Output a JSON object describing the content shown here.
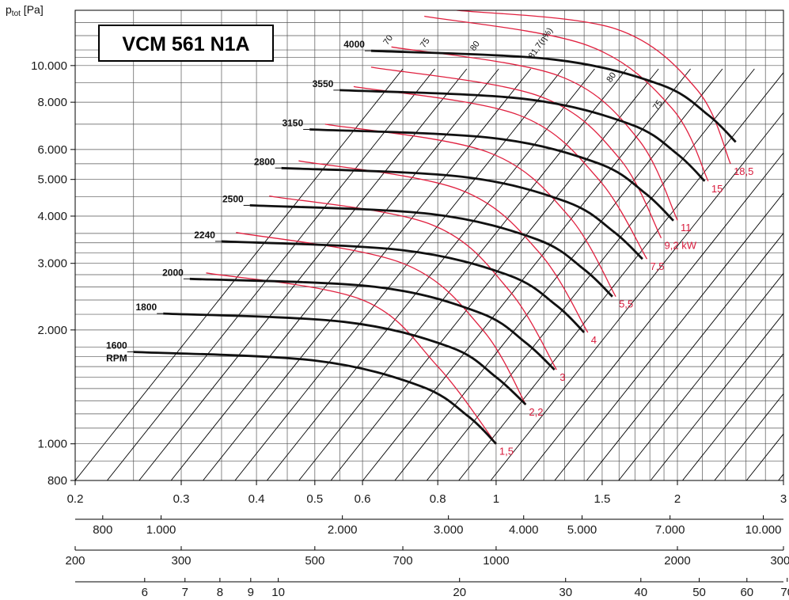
{
  "chart_data": {
    "type": "line",
    "title": "VCM 561 N1A",
    "ylabel": "p",
    "ylabel_sub": "tot",
    "ylabel_unit": " [Pa]",
    "x_scale": "log",
    "y_scale": "log",
    "xlim": [
      0.2,
      3
    ],
    "ylim": [
      800,
      14000
    ],
    "x_ticks": [
      {
        "v": 0.2,
        "label": "0.2"
      },
      {
        "v": 0.3,
        "label": "0.3"
      },
      {
        "v": 0.4,
        "label": "0.4"
      },
      {
        "v": 0.5,
        "label": "0.5"
      },
      {
        "v": 0.6,
        "label": "0.6"
      },
      {
        "v": 0.8,
        "label": "0.8"
      },
      {
        "v": 1,
        "label": "1"
      },
      {
        "v": 1.5,
        "label": "1.5"
      },
      {
        "v": 2,
        "label": "2"
      },
      {
        "v": 3,
        "label": "3"
      }
    ],
    "y_ticks": [
      {
        "v": 800,
        "label": "800"
      },
      {
        "v": 1000,
        "label": "1.000"
      },
      {
        "v": 2000,
        "label": "2.000"
      },
      {
        "v": 3000,
        "label": "3.000"
      },
      {
        "v": 4000,
        "label": "4.000"
      },
      {
        "v": 5000,
        "label": "5.000"
      },
      {
        "v": 6000,
        "label": "6.000"
      },
      {
        "v": 8000,
        "label": "8.000"
      },
      {
        "v": 10000,
        "label": "10.000"
      }
    ],
    "secondary_axes": [
      {
        "ticks": [
          {
            "v": 800,
            "label": "800"
          },
          {
            "v": 1000,
            "label": "1.000"
          },
          {
            "v": 2000,
            "label": "2.000"
          },
          {
            "v": 3000,
            "label": "3.000"
          },
          {
            "v": 4000,
            "label": "4.000"
          },
          {
            "v": 5000,
            "label": "5.000"
          },
          {
            "v": 7000,
            "label": "7.000"
          },
          {
            "v": 10000,
            "label": "10.000"
          }
        ]
      },
      {
        "ticks": [
          {
            "v": 20,
            "label": "20"
          },
          {
            "v": 30,
            "label": "30"
          },
          {
            "v": 40,
            "label": "40"
          },
          {
            "v": 50,
            "label": "50"
          },
          {
            "v": 80,
            "label": "80"
          },
          {
            "v": 100,
            "label": "100"
          },
          {
            "v": 200,
            "label": "200"
          },
          {
            "v": 300,
            "label": "300"
          },
          {
            "v": 500,
            "label": "500"
          },
          {
            "v": 700,
            "label": "700"
          },
          {
            "v": 1000,
            "label": "1000"
          },
          {
            "v": 2000,
            "label": "2000"
          },
          {
            "v": 3000,
            "label": "3000"
          }
        ]
      },
      {
        "ticks": [
          {
            "v": 6,
            "label": "6"
          },
          {
            "v": 7,
            "label": "7"
          },
          {
            "v": 8,
            "label": "8"
          },
          {
            "v": 9,
            "label": "9"
          },
          {
            "v": 10,
            "label": "10"
          },
          {
            "v": 20,
            "label": "20"
          },
          {
            "v": 30,
            "label": "30"
          },
          {
            "v": 40,
            "label": "40"
          },
          {
            "v": 50,
            "label": "50"
          },
          {
            "v": 60,
            "label": "60"
          },
          {
            "v": 70,
            "label": "70"
          }
        ]
      }
    ],
    "rpm_curves": [
      {
        "label": "1600",
        "label2": "RPM",
        "points": [
          [
            0.25,
            1750
          ],
          [
            0.5,
            1660
          ],
          [
            0.75,
            1420
          ],
          [
            0.9,
            1180
          ],
          [
            1.0,
            1000
          ]
        ]
      },
      {
        "label": "1800",
        "points": [
          [
            0.28,
            2210
          ],
          [
            0.56,
            2100
          ],
          [
            0.84,
            1800
          ],
          [
            1.0,
            1500
          ],
          [
            1.12,
            1270
          ]
        ]
      },
      {
        "label": "2000",
        "points": [
          [
            0.31,
            2730
          ],
          [
            0.63,
            2600
          ],
          [
            0.94,
            2220
          ],
          [
            1.12,
            1850
          ],
          [
            1.25,
            1570
          ]
        ]
      },
      {
        "label": "2240",
        "points": [
          [
            0.35,
            3430
          ],
          [
            0.7,
            3250
          ],
          [
            1.05,
            2790
          ],
          [
            1.26,
            2320
          ],
          [
            1.4,
            1970
          ]
        ]
      },
      {
        "label": "2500",
        "points": [
          [
            0.39,
            4270
          ],
          [
            0.78,
            4050
          ],
          [
            1.17,
            3470
          ],
          [
            1.4,
            2890
          ],
          [
            1.56,
            2450
          ]
        ]
      },
      {
        "label": "2800",
        "points": [
          [
            0.44,
            5360
          ],
          [
            0.88,
            5080
          ],
          [
            1.31,
            4360
          ],
          [
            1.57,
            3630
          ],
          [
            1.75,
            3080
          ]
        ]
      },
      {
        "label": "3150",
        "points": [
          [
            0.49,
            6780
          ],
          [
            0.99,
            6430
          ],
          [
            1.48,
            5510
          ],
          [
            1.77,
            4590
          ],
          [
            1.97,
            3890
          ]
        ]
      },
      {
        "label": "3550",
        "points": [
          [
            0.55,
            8610
          ],
          [
            1.11,
            8170
          ],
          [
            1.67,
            7000
          ],
          [
            2.0,
            5830
          ],
          [
            2.22,
            4950
          ]
        ]
      },
      {
        "label": "4000",
        "points": [
          [
            0.62,
            10940
          ],
          [
            1.25,
            10370
          ],
          [
            1.88,
            8890
          ],
          [
            2.25,
            7400
          ],
          [
            2.5,
            6280
          ]
        ]
      }
    ],
    "power_curves": [
      {
        "label": "1,5",
        "points": [
          [
            0.33,
            2830
          ],
          [
            0.6,
            2400
          ],
          [
            0.8,
            1600
          ],
          [
            1.0,
            1000
          ]
        ]
      },
      {
        "label": "2,2",
        "points": [
          [
            0.37,
            3620
          ],
          [
            0.7,
            3000
          ],
          [
            0.95,
            2000
          ],
          [
            1.12,
            1270
          ]
        ]
      },
      {
        "label": "3",
        "points": [
          [
            0.42,
            4520
          ],
          [
            0.78,
            3800
          ],
          [
            1.05,
            2550
          ],
          [
            1.26,
            1570
          ]
        ]
      },
      {
        "label": "4",
        "points": [
          [
            0.47,
            5600
          ],
          [
            0.87,
            4700
          ],
          [
            1.18,
            3200
          ],
          [
            1.42,
            1970
          ]
        ]
      },
      {
        "label": "5,5",
        "points": [
          [
            0.52,
            7000
          ],
          [
            0.97,
            5900
          ],
          [
            1.32,
            4000
          ],
          [
            1.58,
            2450
          ]
        ]
      },
      {
        "label": "7,5",
        "points": [
          [
            0.58,
            8800
          ],
          [
            1.09,
            7400
          ],
          [
            1.48,
            5000
          ],
          [
            1.78,
            3080
          ]
        ]
      },
      {
        "label": "9,2 kW",
        "points": [
          [
            0.62,
            9900
          ],
          [
            1.18,
            8300
          ],
          [
            1.6,
            5700
          ],
          [
            1.88,
            3500
          ]
        ]
      },
      {
        "label": "11",
        "points": [
          [
            0.67,
            11200
          ],
          [
            1.27,
            9400
          ],
          [
            1.72,
            6400
          ],
          [
            2.0,
            3900
          ]
        ]
      },
      {
        "label": "15",
        "points": [
          [
            0.76,
            13500
          ],
          [
            1.42,
            11300
          ],
          [
            1.96,
            7700
          ],
          [
            2.25,
            4950
          ]
        ]
      },
      {
        "label": "18,5",
        "points": [
          [
            0.86,
            14000
          ],
          [
            1.58,
            12500
          ],
          [
            2.16,
            8600
          ],
          [
            2.45,
            5500
          ]
        ]
      }
    ],
    "efficiency_labels": [
      "70",
      "75",
      "80",
      "81,7(η%)",
      "80",
      "75"
    ]
  }
}
